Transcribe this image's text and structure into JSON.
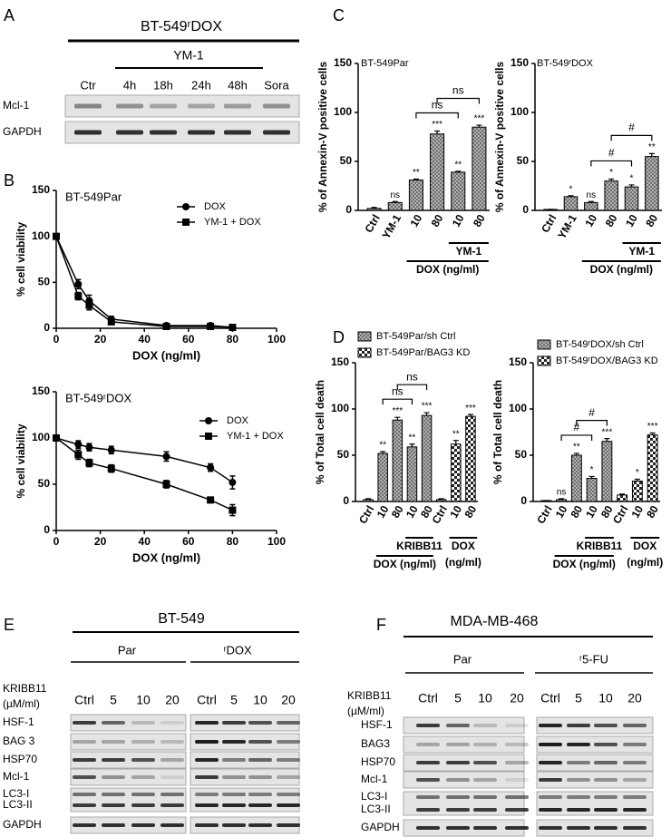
{
  "panel_letters": [
    "A",
    "B",
    "C",
    "D",
    "E",
    "F"
  ],
  "panel_a": {
    "title": "BT-549ʳDOX",
    "treatment": "YM-1",
    "lanes": [
      "Ctr",
      "4h",
      "18h",
      "24h",
      "48h",
      "Sora"
    ],
    "rows": [
      "Mcl-1",
      "GAPDH"
    ]
  },
  "chart_data": [
    {
      "type": "line",
      "title": "BT-549Par",
      "xlabel": "DOX (ng/ml)",
      "ylabel": "% cell viability",
      "x": [
        0,
        10,
        15,
        25,
        50,
        70,
        80
      ],
      "xlim": [
        0,
        100
      ],
      "xticks": [
        0,
        20,
        40,
        60,
        80,
        100
      ],
      "ylim": [
        0,
        150
      ],
      "yticks": [
        0,
        50,
        100,
        150
      ],
      "series": [
        {
          "name": "DOX",
          "color": "#000000",
          "marker": "circle",
          "values": [
            100,
            48,
            30,
            10,
            3,
            3,
            1
          ],
          "errors": [
            0,
            5,
            6,
            3,
            1,
            1,
            1
          ]
        },
        {
          "name": "YM-1 + DOX",
          "color": "#000000",
          "marker": "square",
          "values": [
            100,
            35,
            25,
            7,
            2,
            2,
            1
          ],
          "errors": [
            0,
            4,
            5,
            2,
            1,
            1,
            1
          ]
        }
      ]
    },
    {
      "type": "line",
      "title": "BT-549ʳDOX",
      "xlabel": "DOX (ng/ml)",
      "ylabel": "% cell viability",
      "x": [
        0,
        10,
        15,
        25,
        50,
        70,
        80
      ],
      "xlim": [
        0,
        100
      ],
      "xticks": [
        0,
        20,
        40,
        60,
        80,
        100
      ],
      "ylim": [
        0,
        150
      ],
      "yticks": [
        0,
        50,
        100,
        150
      ],
      "series": [
        {
          "name": "DOX",
          "color": "#000000",
          "marker": "circle",
          "values": [
            100,
            93,
            90,
            87,
            80,
            68,
            52
          ],
          "errors": [
            0,
            4,
            4,
            4,
            5,
            4,
            7
          ]
        },
        {
          "name": "YM-1 + DOX",
          "color": "#000000",
          "marker": "square",
          "values": [
            100,
            82,
            73,
            67,
            50,
            33,
            22
          ],
          "errors": [
            0,
            5,
            4,
            4,
            4,
            3,
            6
          ]
        }
      ]
    },
    {
      "type": "bar",
      "title": "BT-549Par",
      "ylabel": "% of Annexin-V positive cells",
      "categories": [
        "Ctrl",
        "YM-1",
        "10",
        "80",
        "10",
        "80"
      ],
      "values": [
        2,
        8,
        31,
        78,
        39,
        85
      ],
      "errors": [
        1,
        1,
        1,
        3,
        1,
        2
      ],
      "annotations": [
        null,
        "ns",
        "**",
        "***",
        "**",
        "***"
      ],
      "comparisons": [
        "ns",
        "ns"
      ],
      "group_labels": [
        "YM-1",
        "DOX (ng/ml)"
      ],
      "ylim": [
        0,
        150
      ],
      "yticks": [
        0,
        50,
        100,
        150
      ]
    },
    {
      "type": "bar",
      "title": "BT-549ʳDOX",
      "ylabel": "% of Annexin-V positive cells",
      "categories": [
        "Ctrl",
        "YM-1",
        "10",
        "80",
        "10",
        "80"
      ],
      "values": [
        1,
        14,
        8,
        30,
        24,
        55
      ],
      "errors": [
        0,
        1,
        1,
        2,
        2,
        3
      ],
      "annotations": [
        null,
        "*",
        "ns",
        "*",
        "*",
        "**"
      ],
      "comparisons": [
        "#",
        "#"
      ],
      "group_labels": [
        "YM-1",
        "DOX (ng/ml)"
      ],
      "ylim": [
        0,
        150
      ],
      "yticks": [
        0,
        50,
        100,
        150
      ]
    },
    {
      "type": "bar",
      "ylabel": "% of Total cell death",
      "categories": [
        "Ctrl",
        "10",
        "80",
        "10",
        "80",
        "Ctrl",
        "10",
        "80"
      ],
      "series": [
        {
          "name": "BT-549Par/sh Ctrl",
          "values": [
            2,
            52,
            88,
            59,
            93,
            null,
            null,
            null
          ],
          "errors": [
            1,
            2,
            3,
            3,
            3,
            null,
            null,
            null
          ]
        },
        {
          "name": "BT-549Par/BAG3 KD",
          "values": [
            null,
            null,
            null,
            null,
            null,
            2,
            62,
            92
          ],
          "errors": [
            null,
            null,
            null,
            null,
            null,
            1,
            4,
            2
          ]
        }
      ],
      "annotations": [
        null,
        "**",
        "***",
        "**",
        "***",
        null,
        "**",
        "***"
      ],
      "comparisons": [
        "ns",
        "ns"
      ],
      "group_labels": [
        "KRIBB11",
        "DOX (ng/ml)",
        "DOX",
        "(ng/ml)"
      ],
      "ylim": [
        0,
        150
      ],
      "yticks": [
        0,
        50,
        100,
        150
      ]
    },
    {
      "type": "bar",
      "ylabel": "% of Total cell death",
      "categories": [
        "Ctrl",
        "10",
        "80",
        "10",
        "80",
        "Ctrl",
        "10",
        "80"
      ],
      "series": [
        {
          "name": "BT-549ʳDOX/sh Ctrl",
          "values": [
            1,
            2,
            50,
            25,
            65,
            null,
            null,
            null
          ],
          "errors": [
            0,
            1,
            2,
            2,
            3,
            null,
            null,
            null
          ]
        },
        {
          "name": "BT-549ʳDOX/BAG3 KD",
          "values": [
            null,
            null,
            null,
            null,
            null,
            7,
            22,
            72
          ],
          "errors": [
            null,
            null,
            null,
            null,
            null,
            1,
            2,
            2
          ]
        }
      ],
      "annotations": [
        null,
        "ns",
        "**",
        "*",
        "***",
        null,
        "*",
        "***"
      ],
      "comparisons": [
        "#",
        "#"
      ],
      "group_labels": [
        "KRIBB11",
        "DOX (ng/ml)",
        "DOX",
        "(ng/ml)"
      ],
      "ylim": [
        0,
        150
      ],
      "yticks": [
        0,
        50,
        100,
        150
      ]
    }
  ],
  "panel_e": {
    "title": "BT-549",
    "groups": [
      "Par",
      "ʳDOX"
    ],
    "dose_label": [
      "KRIBB11",
      "(µM/ml)"
    ],
    "lanes": [
      "Ctrl",
      "5",
      "10",
      "20",
      "Ctrl",
      "5",
      "10",
      "20"
    ],
    "rows": [
      "HSF-1",
      "BAG 3",
      "HSP70",
      "Mcl-1",
      "LC3-I",
      "LC3-II",
      "GAPDH"
    ]
  },
  "panel_f": {
    "title": "MDA-MB-468",
    "groups": [
      "Par",
      "ʳ5-FU"
    ],
    "dose_label": [
      "KRIBB11",
      "(µM/ml)"
    ],
    "lanes": [
      "Ctrl",
      "5",
      "10",
      "20",
      "Ctrl",
      "5",
      "10",
      "20"
    ],
    "rows": [
      "HSF-1",
      "BAG3",
      "HSP70",
      "Mcl-1",
      "LC3-I",
      "LC3-II",
      "GAPDH"
    ]
  }
}
